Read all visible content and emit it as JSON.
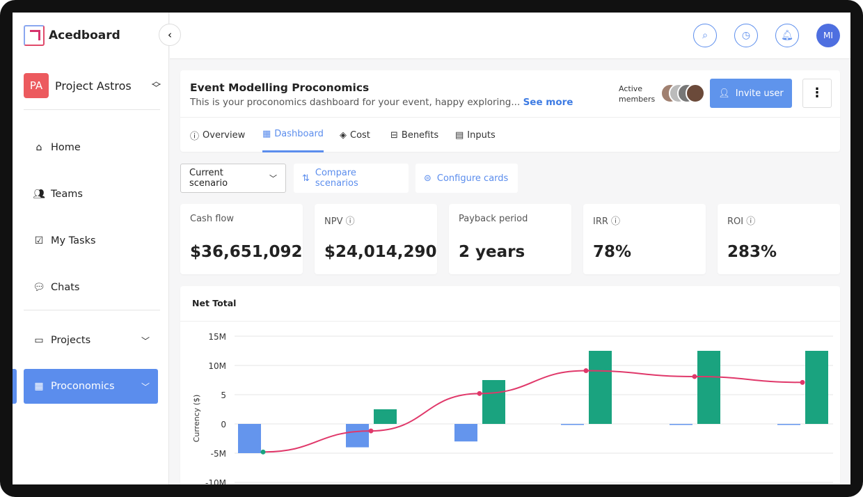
{
  "app": {
    "name": "Acedboard"
  },
  "project": {
    "initials": "PA",
    "name": "Project Astros"
  },
  "sidebar": {
    "items": [
      {
        "label": "Home",
        "icon": "home-icon"
      },
      {
        "label": "Teams",
        "icon": "users-icon"
      },
      {
        "label": "My Tasks",
        "icon": "checklist-icon"
      },
      {
        "label": "Chats",
        "icon": "chat-icon"
      },
      {
        "label": "Projects",
        "icon": "briefcase-icon"
      },
      {
        "label": "Proconomics",
        "icon": "calculator-icon"
      }
    ]
  },
  "topbar": {
    "user_initials": "MI"
  },
  "header": {
    "title": "Event Modelling Proconomics",
    "subtitle": "This is your proconomics dashboard for your event, happy exploring...",
    "see_more": "See more",
    "active_members": "Active members",
    "invite": "Invite user"
  },
  "tabs": [
    {
      "label": "Overview"
    },
    {
      "label": "Dashboard",
      "active": true
    },
    {
      "label": "Cost"
    },
    {
      "label": "Benefits"
    },
    {
      "label": "Inputs"
    }
  ],
  "toolbar": {
    "scenario": "Current scenario",
    "compare": "Compare scenarios",
    "configure": "Configure cards"
  },
  "kpis": [
    {
      "label": "Cash flow",
      "value": "$36,651,092"
    },
    {
      "label": "NPV",
      "value": "$24,014,290"
    },
    {
      "label": "Payback period",
      "value": "2 years"
    },
    {
      "label": "IRR",
      "value": "78%"
    },
    {
      "label": "ROI",
      "value": "283%"
    }
  ],
  "colors": {
    "accent": "#5b8ded",
    "cost": "#6495ed",
    "benefit": "#1aa37f",
    "line": "#e0386a"
  },
  "chart_data": {
    "type": "bar",
    "title": "Net Total",
    "ylabel": "Currency ($)",
    "yticks": [
      "15M",
      "10M",
      "5",
      "0",
      "-5M",
      "-10M"
    ],
    "ylim": [
      -10,
      15
    ],
    "grid": true,
    "series": [
      {
        "type": "bar",
        "color": "#6495ed",
        "values": [
          -5,
          -4,
          -3,
          -0.1,
          -0.1,
          -0.1
        ]
      },
      {
        "type": "bar",
        "color": "#1aa37f",
        "values": [
          0,
          2.5,
          7.5,
          12.5,
          12.5,
          12.5
        ]
      },
      {
        "type": "line",
        "color": "#e0386a",
        "values": [
          -4.8,
          -1.2,
          5.2,
          9.1,
          8.1,
          7.1
        ]
      }
    ]
  }
}
